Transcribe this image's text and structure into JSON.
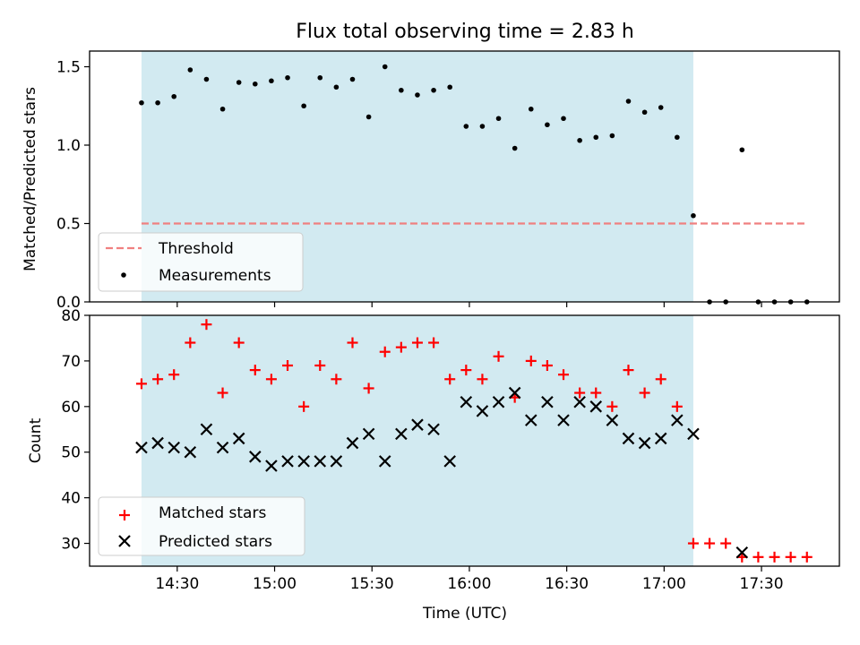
{
  "chart_data": [
    {
      "type": "scatter",
      "title": "Flux total observing time = 2.83 h",
      "ylabel": "Matched/Predicted stars",
      "xlabel": "",
      "ylim": [
        0,
        1.6
      ],
      "yticks": [
        0.0,
        0.5,
        1.0,
        1.5
      ],
      "ytick_labels": [
        "0.0",
        "0.5",
        "1.0",
        "1.5"
      ],
      "x_unit": "HH:MM",
      "xlim": [
        "14:03",
        "17:54"
      ],
      "shaded_interval": {
        "start": "14:19",
        "end": "17:09",
        "color": "#add8e6"
      },
      "threshold": {
        "name": "Threshold",
        "value": 0.5,
        "x_start": "14:19",
        "x_end": "17:44",
        "color": "#f08080",
        "style": "dashed"
      },
      "legend_position": "lower-left",
      "series": [
        {
          "name": "Measurements",
          "marker": "dot",
          "color": "#000000",
          "x": [
            "14:19",
            "14:24",
            "14:29",
            "14:34",
            "14:39",
            "14:44",
            "14:49",
            "14:54",
            "14:59",
            "15:04",
            "15:09",
            "15:14",
            "15:19",
            "15:24",
            "15:29",
            "15:34",
            "15:39",
            "15:44",
            "15:49",
            "15:54",
            "15:59",
            "16:04",
            "16:09",
            "16:14",
            "16:19",
            "16:24",
            "16:29",
            "16:34",
            "16:39",
            "16:44",
            "16:49",
            "16:54",
            "16:59",
            "17:04",
            "17:09",
            "17:14",
            "17:19",
            "17:24",
            "17:29",
            "17:34",
            "17:39",
            "17:44"
          ],
          "y": [
            1.27,
            1.27,
            1.31,
            1.48,
            1.42,
            1.23,
            1.4,
            1.39,
            1.41,
            1.43,
            1.25,
            1.43,
            1.37,
            1.42,
            1.18,
            1.5,
            1.35,
            1.32,
            1.35,
            1.37,
            1.12,
            1.12,
            1.17,
            0.98,
            1.23,
            1.13,
            1.17,
            1.03,
            1.05,
            1.06,
            1.28,
            1.21,
            1.24,
            1.05,
            0.55,
            0.0,
            0.0,
            0.97,
            0.0,
            0.0,
            0.0,
            0.0
          ]
        }
      ]
    },
    {
      "type": "scatter",
      "title": "",
      "ylabel": "Count",
      "xlabel": "Time (UTC)",
      "ylim": [
        25,
        80
      ],
      "yticks": [
        30,
        40,
        50,
        60,
        70,
        80
      ],
      "ytick_labels": [
        "30",
        "40",
        "50",
        "60",
        "70",
        "80"
      ],
      "xlim": [
        "14:03",
        "17:54"
      ],
      "xticks": [
        "14:30",
        "15:00",
        "15:30",
        "16:00",
        "16:30",
        "17:00",
        "17:30"
      ],
      "xtick_labels": [
        "14:30",
        "15:00",
        "15:30",
        "16:00",
        "16:30",
        "17:00",
        "17:30"
      ],
      "shaded_interval": {
        "start": "14:19",
        "end": "17:09",
        "color": "#add8e6"
      },
      "legend_position": "lower-left",
      "series": [
        {
          "name": "Matched stars",
          "marker": "plus",
          "color": "#ff0000",
          "x": [
            "14:19",
            "14:24",
            "14:29",
            "14:34",
            "14:39",
            "14:44",
            "14:49",
            "14:54",
            "14:59",
            "15:04",
            "15:09",
            "15:14",
            "15:19",
            "15:24",
            "15:29",
            "15:34",
            "15:39",
            "15:44",
            "15:49",
            "15:54",
            "15:59",
            "16:04",
            "16:09",
            "16:14",
            "16:19",
            "16:24",
            "16:29",
            "16:34",
            "16:39",
            "16:44",
            "16:49",
            "16:54",
            "16:59",
            "17:04",
            "17:09",
            "17:14",
            "17:19",
            "17:24",
            "17:29",
            "17:34",
            "17:39",
            "17:44"
          ],
          "y": [
            65,
            66,
            67,
            74,
            78,
            63,
            74,
            68,
            66,
            69,
            60,
            69,
            66,
            74,
            64,
            72,
            73,
            74,
            74,
            66,
            68,
            66,
            71,
            62,
            70,
            69,
            67,
            63,
            63,
            60,
            68,
            63,
            66,
            60,
            30,
            30,
            30,
            27,
            27,
            27,
            27,
            27
          ]
        },
        {
          "name": "Predicted stars",
          "marker": "x",
          "color": "#000000",
          "x": [
            "14:19",
            "14:24",
            "14:29",
            "14:34",
            "14:39",
            "14:44",
            "14:49",
            "14:54",
            "14:59",
            "15:04",
            "15:09",
            "15:14",
            "15:19",
            "15:24",
            "15:29",
            "15:34",
            "15:39",
            "15:44",
            "15:49",
            "15:54",
            "15:59",
            "16:04",
            "16:09",
            "16:14",
            "16:19",
            "16:24",
            "16:29",
            "16:34",
            "16:39",
            "16:44",
            "16:49",
            "16:54",
            "16:59",
            "17:04",
            "17:09",
            "17:24"
          ],
          "y": [
            51,
            52,
            51,
            50,
            55,
            51,
            53,
            49,
            47,
            48,
            48,
            48,
            48,
            52,
            54,
            48,
            54,
            56,
            55,
            48,
            61,
            59,
            61,
            63,
            57,
            61,
            57,
            61,
            60,
            57,
            53,
            52,
            53,
            57,
            54,
            28
          ]
        }
      ]
    }
  ]
}
